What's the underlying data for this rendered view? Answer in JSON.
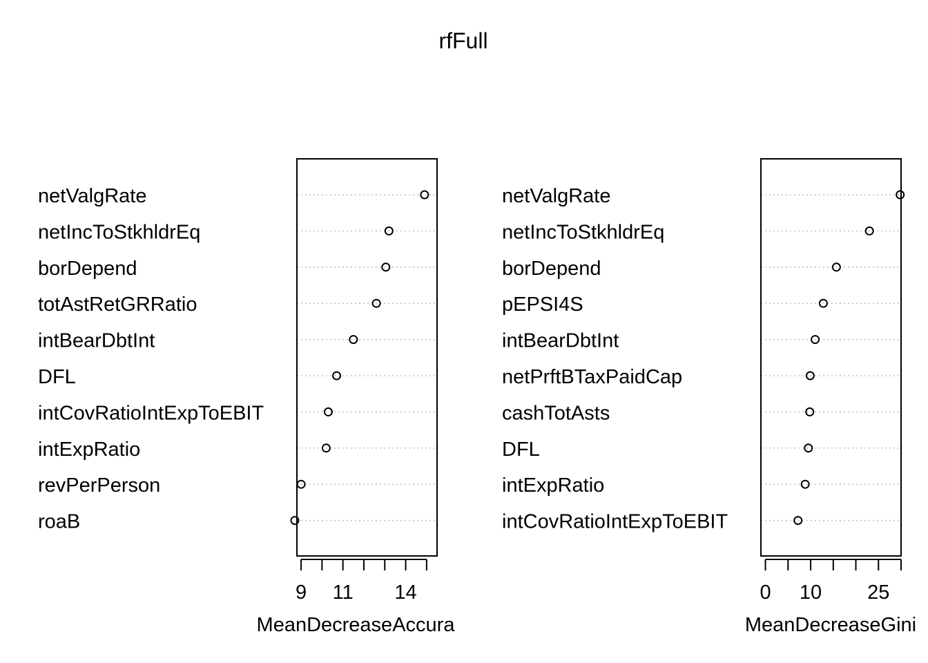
{
  "title": "rfFull",
  "chart_data": [
    {
      "type": "scatter",
      "variant": "dotchart",
      "xlabel": "MeanDecreaseAccura",
      "ylabel": "",
      "xlim": [
        8.8,
        15.5
      ],
      "xticks": [
        9,
        10,
        11,
        12,
        13,
        14,
        15
      ],
      "xtick_labels": [
        "9",
        "",
        "11",
        "",
        "",
        "14",
        ""
      ],
      "grid": "dotted horizontal",
      "categories": [
        "netValgRate",
        "netIncToStkhldrEq",
        "borDepend",
        "totAstRetGRRatio",
        "intBearDbtInt",
        "DFL",
        "intCovRatioIntExpToEBIT",
        "intExpRatio",
        "revPerPerson",
        "roaB"
      ],
      "values": [
        14.9,
        13.2,
        13.05,
        12.6,
        11.5,
        10.7,
        10.3,
        10.2,
        9.0,
        8.7
      ]
    },
    {
      "type": "scatter",
      "variant": "dotchart",
      "xlabel": "MeanDecreaseGini",
      "ylabel": "",
      "xlim": [
        -1,
        30
      ],
      "xticks": [
        0,
        5,
        10,
        15,
        20,
        25,
        30
      ],
      "xtick_labels": [
        "0",
        "",
        "10",
        "",
        "",
        "25",
        ""
      ],
      "grid": "dotted horizontal",
      "categories": [
        "netValgRate",
        "netIncToStkhldrEq",
        "borDepend",
        "pEPSI4S",
        "intBearDbtInt",
        "netPrftBTaxPaidCap",
        "cashTotAsts",
        "DFL",
        "intExpRatio",
        "intCovRatioIntExpToEBIT"
      ],
      "values": [
        29.8,
        23.0,
        15.7,
        12.8,
        11.0,
        9.9,
        9.8,
        9.5,
        8.8,
        7.2
      ]
    }
  ]
}
